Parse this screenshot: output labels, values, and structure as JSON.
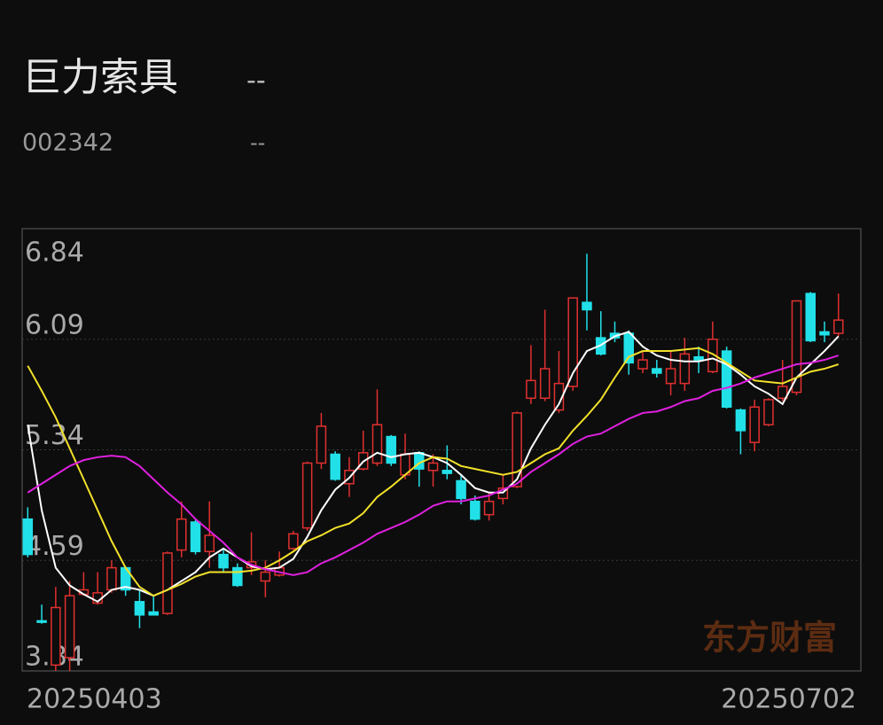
{
  "header": {
    "title": "巨力索具",
    "title_change": "--",
    "code": "002342",
    "code_change": "--"
  },
  "chart_data": {
    "type": "candlestick",
    "categories": [
      "20250403",
      null,
      null,
      null,
      null,
      null,
      null,
      null,
      null,
      null,
      null,
      null,
      null,
      null,
      null,
      null,
      null,
      null,
      null,
      null,
      null,
      null,
      null,
      null,
      null,
      null,
      null,
      null,
      null,
      null,
      null,
      null,
      null,
      null,
      null,
      null,
      null,
      null,
      null,
      null,
      null,
      null,
      null,
      null,
      null,
      null,
      null,
      null,
      null,
      null,
      null,
      null,
      null,
      null,
      null,
      null,
      null,
      null,
      "20250702"
    ],
    "open": [
      4.87,
      4.18,
      3.88,
      3.93,
      4.36,
      4.3,
      4.39,
      4.54,
      4.31,
      4.24,
      4.23,
      4.66,
      4.85,
      4.65,
      4.63,
      4.54,
      4.54,
      4.45,
      4.49,
      4.67,
      4.81,
      5.25,
      5.31,
      5.11,
      5.21,
      5.25,
      5.43,
      5.17,
      5.32,
      5.2,
      5.2,
      5.13,
      4.99,
      4.9,
      5.01,
      5.09,
      5.69,
      5.69,
      5.61,
      5.77,
      6.34,
      6.1,
      6.13,
      6.13,
      5.89,
      5.89,
      5.79,
      5.79,
      5.97,
      5.87,
      6.01,
      5.61,
      5.39,
      5.51,
      5.69,
      5.73,
      6.4,
      6.14,
      6.13
    ],
    "high": [
      4.95,
      4.29,
      4.41,
      4.45,
      4.51,
      4.51,
      4.59,
      4.55,
      4.39,
      4.35,
      4.65,
      4.99,
      4.87,
      4.99,
      4.67,
      4.57,
      4.78,
      4.59,
      4.65,
      4.79,
      5.26,
      5.59,
      5.33,
      5.29,
      5.47,
      5.75,
      5.44,
      5.45,
      5.33,
      5.31,
      5.37,
      5.17,
      5.03,
      5.05,
      5.17,
      5.6,
      6.05,
      6.29,
      6.01,
      6.37,
      6.67,
      6.28,
      6.21,
      6.15,
      6.01,
      5.95,
      6.01,
      6.1,
      6.04,
      6.21,
      6.04,
      5.62,
      5.68,
      5.69,
      5.95,
      6.35,
      6.41,
      6.21,
      6.4
    ],
    "low": [
      4.61,
      4.16,
      3.84,
      3.84,
      4.35,
      4.29,
      4.37,
      4.35,
      4.13,
      4.22,
      4.22,
      4.61,
      4.63,
      4.54,
      4.51,
      4.41,
      4.49,
      4.34,
      4.48,
      4.66,
      4.79,
      5.21,
      5.13,
      5.02,
      5.2,
      5.23,
      5.23,
      5.14,
      5.09,
      5.09,
      5.14,
      4.97,
      4.86,
      4.86,
      4.97,
      5.08,
      5.65,
      5.67,
      5.59,
      5.74,
      6.15,
      5.98,
      6.07,
      5.85,
      5.86,
      5.83,
      5.71,
      5.74,
      5.86,
      5.86,
      5.62,
      5.31,
      5.33,
      5.5,
      5.67,
      5.71,
      6.07,
      6.07,
      6.11
    ],
    "close": [
      4.63,
      4.17,
      4.27,
      4.35,
      4.39,
      4.37,
      4.54,
      4.39,
      4.22,
      4.22,
      4.64,
      4.87,
      4.65,
      4.76,
      4.54,
      4.42,
      4.58,
      4.51,
      4.54,
      4.77,
      5.25,
      5.5,
      5.14,
      5.2,
      5.32,
      5.51,
      5.25,
      5.31,
      5.21,
      5.25,
      5.18,
      5.01,
      4.87,
      4.99,
      5.08,
      5.59,
      5.81,
      5.89,
      5.79,
      6.37,
      6.29,
      5.99,
      6.1,
      5.93,
      5.95,
      5.86,
      5.89,
      5.99,
      5.95,
      6.09,
      5.63,
      5.47,
      5.63,
      5.68,
      5.77,
      6.35,
      6.08,
      6.12,
      6.22
    ],
    "up_color": "#e03030",
    "down_color": "#22e0e8",
    "series": [
      {
        "color": "#ffffff",
        "values": [
          5.51,
          4.93,
          4.54,
          4.42,
          4.36,
          4.31,
          4.39,
          4.41,
          4.39,
          4.35,
          4.39,
          4.45,
          4.51,
          4.61,
          4.67,
          4.61,
          4.55,
          4.53,
          4.54,
          4.6,
          4.75,
          4.93,
          5.07,
          5.15,
          5.26,
          5.32,
          5.29,
          5.31,
          5.32,
          5.29,
          5.25,
          5.17,
          5.08,
          5.05,
          5.05,
          5.14,
          5.35,
          5.51,
          5.65,
          5.86,
          6.01,
          6.05,
          6.11,
          6.14,
          6.04,
          5.98,
          5.95,
          5.94,
          5.94,
          5.96,
          5.92,
          5.85,
          5.77,
          5.72,
          5.65,
          5.83,
          5.92,
          6.01,
          6.11
        ]
      },
      {
        "color": "#f2e12a",
        "values": [
          5.91,
          5.74,
          5.56,
          5.35,
          5.14,
          4.93,
          4.72,
          4.54,
          4.41,
          4.35,
          4.39,
          4.43,
          4.48,
          4.51,
          4.51,
          4.51,
          4.52,
          4.54,
          4.59,
          4.65,
          4.72,
          4.76,
          4.81,
          4.84,
          4.91,
          5.02,
          5.09,
          5.17,
          5.25,
          5.29,
          5.28,
          5.23,
          5.21,
          5.19,
          5.17,
          5.19,
          5.25,
          5.31,
          5.35,
          5.47,
          5.57,
          5.68,
          5.83,
          5.97,
          6.01,
          6.01,
          6.01,
          6.02,
          6.03,
          5.99,
          5.93,
          5.87,
          5.81,
          5.8,
          5.79,
          5.83,
          5.87,
          5.89,
          5.92
        ]
      },
      {
        "color": "#e020e0",
        "values": [
          5.05,
          5.11,
          5.17,
          5.23,
          5.27,
          5.29,
          5.3,
          5.29,
          5.23,
          5.14,
          5.05,
          4.97,
          4.87,
          4.79,
          4.71,
          4.61,
          4.56,
          4.53,
          4.51,
          4.49,
          4.51,
          4.57,
          4.61,
          4.66,
          4.71,
          4.77,
          4.81,
          4.85,
          4.9,
          4.96,
          4.99,
          4.99,
          5.01,
          5.03,
          5.07,
          5.11,
          5.19,
          5.25,
          5.31,
          5.38,
          5.43,
          5.45,
          5.5,
          5.55,
          5.59,
          5.6,
          5.63,
          5.67,
          5.69,
          5.74,
          5.76,
          5.79,
          5.83,
          5.86,
          5.89,
          5.92,
          5.93,
          5.95,
          5.98
        ]
      }
    ],
    "ylim": [
      3.84,
      6.84
    ],
    "yticks": [
      3.84,
      4.59,
      5.34,
      6.09,
      6.84
    ],
    "watermark": "东方财富"
  }
}
